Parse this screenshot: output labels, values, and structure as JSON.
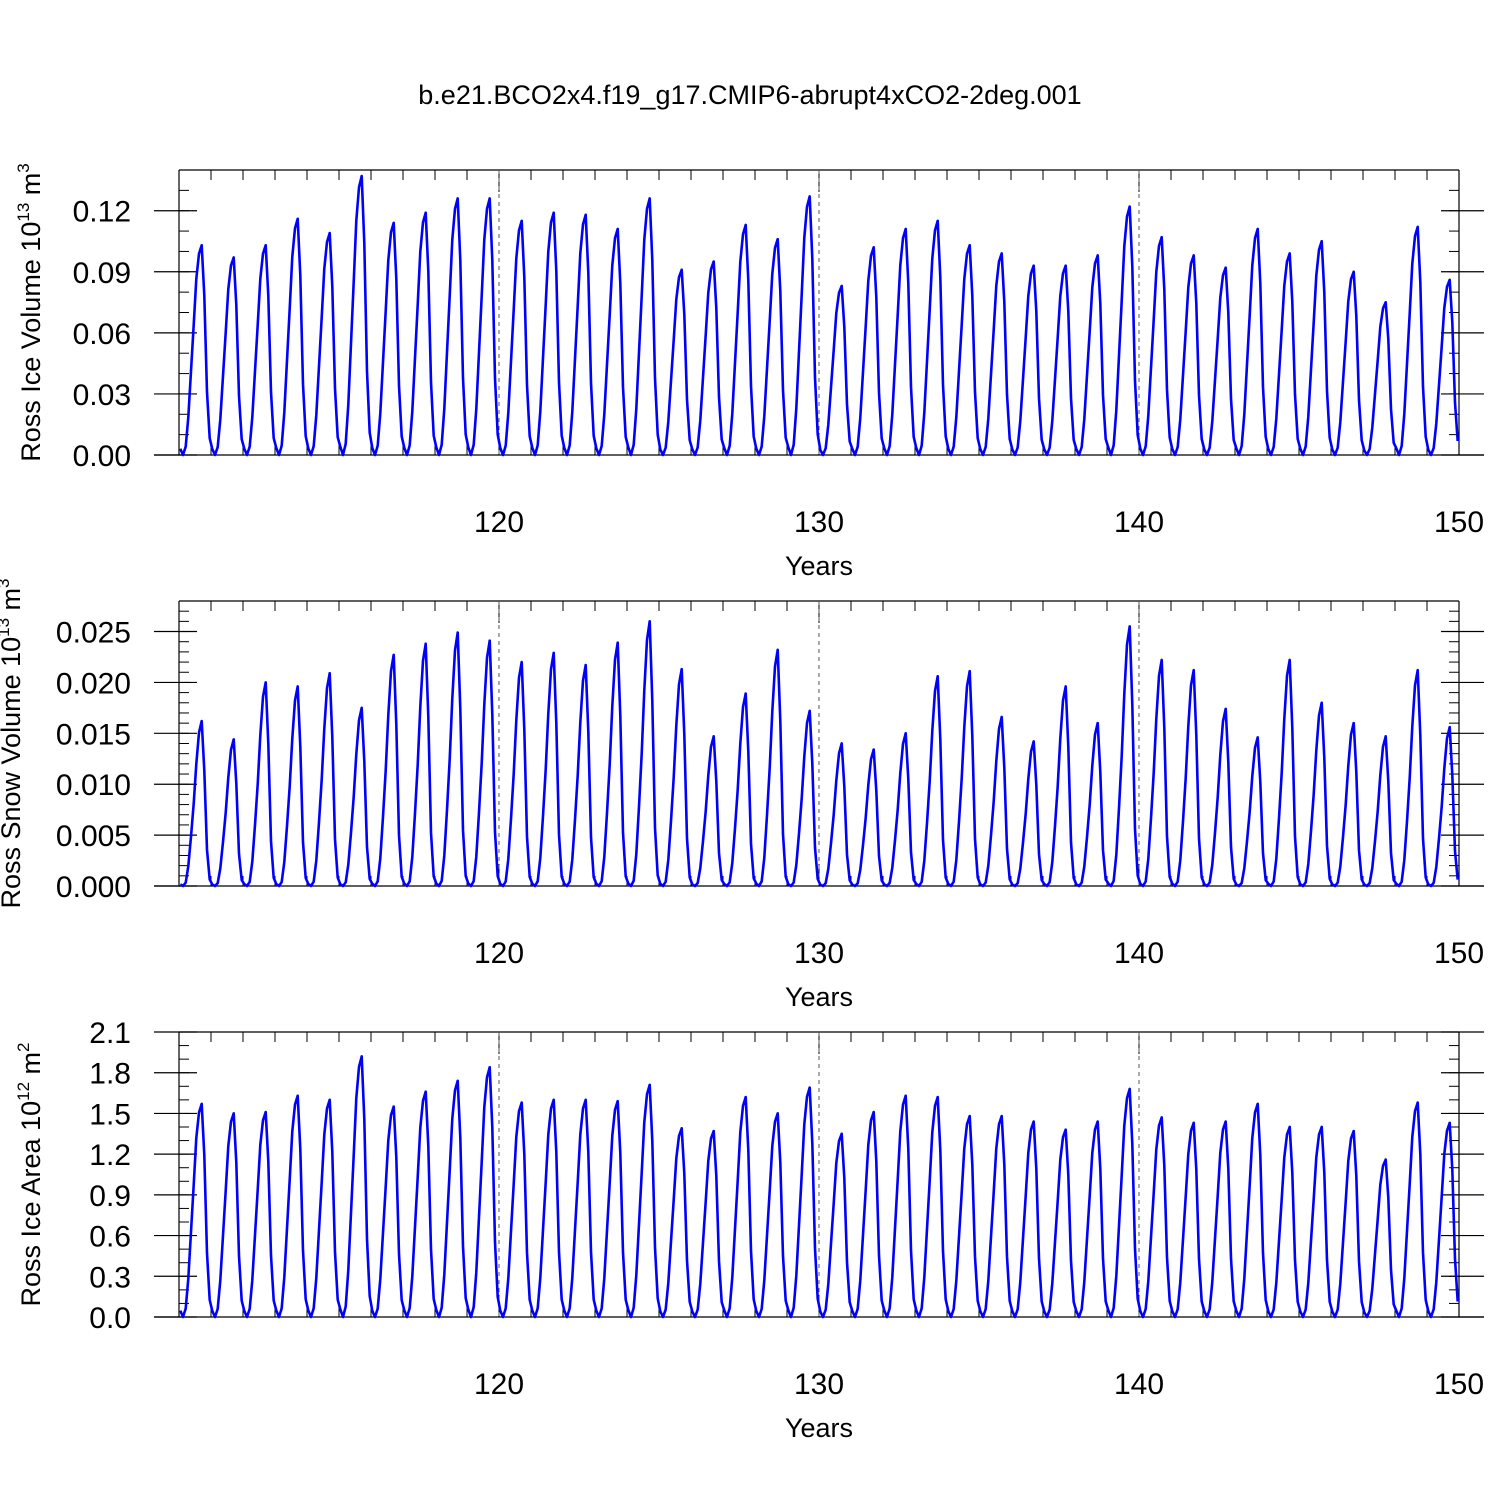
{
  "figure": {
    "title": "b.e21.BCO2x4.f19_g17.CMIP6-abrupt4xCO2-2deg.001"
  },
  "colors": {
    "series": "#0000ff",
    "axis": "#000000",
    "refline": "#555555"
  },
  "chart_data": [
    {
      "type": "line",
      "name": "ross-ice-volume",
      "title": "b.e21.BCO2x4.f19_g17.CMIP6-abrupt4xCO2-2deg.001",
      "xlabel": "Years",
      "ylabel_main": "Ross Ice Volume 10",
      "ylabel_exp": "13",
      "ylabel_unit": " m",
      "ylabel_unit_exp": "3",
      "xlim": [
        110,
        150
      ],
      "ylim": [
        0,
        0.14
      ],
      "xticks": [
        120,
        130,
        140,
        150
      ],
      "yticks": [
        0.0,
        0.03,
        0.06,
        0.09,
        0.12
      ],
      "ytick_labels": [
        "0.00",
        "0.03",
        "0.06",
        "0.09",
        "0.12"
      ],
      "yminor": 0.01,
      "reference_years": [
        120,
        130,
        140
      ],
      "start_year": 110,
      "peaks": [
        0.103,
        0.097,
        0.103,
        0.116,
        0.109,
        0.137,
        0.114,
        0.119,
        0.126,
        0.126,
        0.115,
        0.119,
        0.118,
        0.111,
        0.126,
        0.091,
        0.095,
        0.113,
        0.106,
        0.127,
        0.083,
        0.102,
        0.111,
        0.115,
        0.103,
        0.099,
        0.093,
        0.093,
        0.098,
        0.122,
        0.107,
        0.098,
        0.092,
        0.111,
        0.099,
        0.105,
        0.09,
        0.075,
        0.112,
        0.086
      ]
    },
    {
      "type": "line",
      "name": "ross-snow-volume",
      "xlabel": "Years",
      "ylabel_main": "Ross Snow Volume 10",
      "ylabel_exp": "13",
      "ylabel_unit": " m",
      "ylabel_unit_exp": "3",
      "xlim": [
        110,
        150
      ],
      "ylim": [
        0,
        0.028
      ],
      "xticks": [
        120,
        130,
        140,
        150
      ],
      "yticks": [
        0.0,
        0.005,
        0.01,
        0.015,
        0.02,
        0.025
      ],
      "ytick_labels": [
        "0.000",
        "0.005",
        "0.010",
        "0.015",
        "0.020",
        "0.025"
      ],
      "yminor": 0.001,
      "reference_years": [
        120,
        130,
        140
      ],
      "start_year": 110,
      "peaks": [
        0.0162,
        0.0144,
        0.02,
        0.0196,
        0.0209,
        0.0175,
        0.0227,
        0.0238,
        0.0249,
        0.0241,
        0.022,
        0.0229,
        0.0217,
        0.0239,
        0.026,
        0.0213,
        0.0147,
        0.0189,
        0.0232,
        0.0172,
        0.014,
        0.0134,
        0.015,
        0.0206,
        0.0211,
        0.0166,
        0.0142,
        0.0196,
        0.016,
        0.0255,
        0.0222,
        0.0212,
        0.0174,
        0.0146,
        0.0222,
        0.018,
        0.016,
        0.0147,
        0.0212,
        0.0156
      ]
    },
    {
      "type": "line",
      "name": "ross-ice-area",
      "xlabel": "Years",
      "ylabel_main": "Ross Ice Area 10",
      "ylabel_exp": "12",
      "ylabel_unit": " m",
      "ylabel_unit_exp": "2",
      "xlim": [
        110,
        150
      ],
      "ylim": [
        0,
        2.1
      ],
      "xticks": [
        120,
        130,
        140,
        150
      ],
      "yticks": [
        0.0,
        0.3,
        0.6,
        0.9,
        1.2,
        1.5,
        1.8,
        2.1
      ],
      "ytick_labels": [
        "0.0",
        "0.3",
        "0.6",
        "0.9",
        "1.2",
        "1.5",
        "1.8",
        "2.1"
      ],
      "yminor": 0.1,
      "reference_years": [
        120,
        130,
        140
      ],
      "start_year": 110,
      "peaks": [
        1.57,
        1.5,
        1.51,
        1.63,
        1.6,
        1.92,
        1.55,
        1.66,
        1.74,
        1.84,
        1.58,
        1.6,
        1.6,
        1.59,
        1.71,
        1.39,
        1.37,
        1.62,
        1.5,
        1.69,
        1.35,
        1.51,
        1.63,
        1.62,
        1.48,
        1.48,
        1.44,
        1.38,
        1.44,
        1.68,
        1.47,
        1.43,
        1.44,
        1.57,
        1.4,
        1.4,
        1.37,
        1.16,
        1.58,
        1.43
      ]
    }
  ]
}
